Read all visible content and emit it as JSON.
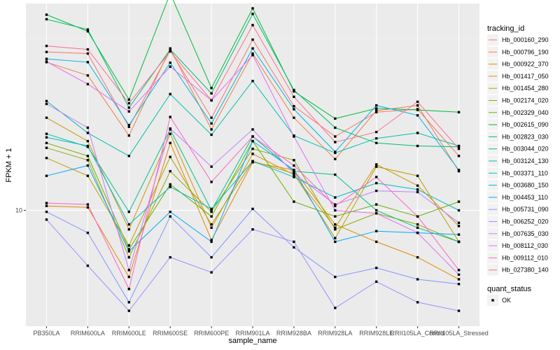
{
  "chart_data": {
    "type": "line",
    "xlabel": "sample_name",
    "ylabel": "FPKM + 1",
    "y_scale": "log10",
    "ylim": [
      4.6,
      40
    ],
    "y_ticks": [
      10
    ],
    "y_tick_labels": [
      "10"
    ],
    "grid": true,
    "legend_position": "right",
    "categories": [
      "PB350LA",
      "RRIM600LA",
      "RRIM600LE",
      "RRIM600SE",
      "RRIM600PE",
      "RRIM901LA",
      "RRIM928BA",
      "RRIM928LA",
      "RRIM928LE",
      "RRII105LA_Control",
      "RRII105LA_Stressed"
    ],
    "legend": {
      "color_title": "tracking_id",
      "shape_title": "quant_status",
      "shape_entries": [
        "OK"
      ]
    },
    "series": [
      {
        "name": "Hb_000160_290",
        "color": "#F8766D",
        "values": [
          28.9,
          28.6,
          17.5,
          29.2,
          18.6,
          31.4,
          20.1,
          16.4,
          19.3,
          19.7,
          14.4
        ]
      },
      {
        "name": "Hb_000796_190",
        "color": "#EF7F49",
        "values": [
          27.0,
          24.7,
          16.5,
          29.6,
          17.2,
          28.6,
          18.6,
          14.1,
          19.5,
          20.2,
          13.0
        ]
      },
      {
        "name": "Hb_000922_370",
        "color": "#E28A00",
        "values": [
          10.3,
          10.2,
          6.4,
          15.7,
          8.2,
          13.8,
          13.1,
          9.1,
          8.1,
          7.3,
          6.3
        ]
      },
      {
        "name": "Hb_001417_050",
        "color": "#D09400",
        "values": [
          18.6,
          15.9,
          8.8,
          16.7,
          8.9,
          14.6,
          12.7,
          8.9,
          13.6,
          11.8,
          9.0
        ]
      },
      {
        "name": "Hb_001454_280",
        "color": "#B79F00",
        "values": [
          14.2,
          12.6,
          7.9,
          14.3,
          9.1,
          13.9,
          12.8,
          8.3,
          13.4,
          12.6,
          8.1
        ]
      },
      {
        "name": "Hb_002174_020",
        "color": "#98A900",
        "values": [
          15.2,
          14.0,
          7.3,
          13.0,
          9.9,
          15.1,
          14.0,
          8.8,
          9.8,
          9.1,
          8.1
        ]
      },
      {
        "name": "Hb_002329_040",
        "color": "#6BB100",
        "values": [
          15.7,
          14.4,
          7.7,
          11.9,
          9.6,
          15.9,
          10.6,
          9.6,
          10.4,
          9.6,
          10.6
        ]
      },
      {
        "name": "Hb_002615_090",
        "color": "#00BA38",
        "values": [
          37.1,
          33.2,
          21.0,
          42.8,
          22.7,
          38.7,
          22.2,
          18.5,
          19.8,
          19.6,
          19.3
        ]
      },
      {
        "name": "Hb_002823_030",
        "color": "#00BE6C",
        "values": [
          36.0,
          33.6,
          19.9,
          29.4,
          21.9,
          37.3,
          22.4,
          17.4,
          15.7,
          15.4,
          15.3
        ]
      },
      {
        "name": "Hb_003044_020",
        "color": "#00C08B",
        "values": [
          16.7,
          15.3,
          9.9,
          17.2,
          10.0,
          16.4,
          13.0,
          12.7,
          10.0,
          8.9,
          8.1
        ]
      },
      {
        "name": "Hb_003124_130",
        "color": "#00C0AA",
        "values": [
          20.8,
          16.8,
          14.4,
          21.8,
          16.6,
          23.8,
          16.5,
          14.7,
          16.2,
          16.8,
          15.4
        ]
      },
      {
        "name": "Hb_003371_110",
        "color": "#00BCC6",
        "values": [
          16.3,
          15.4,
          9.1,
          11.7,
          10.1,
          13.9,
          12.5,
          10.9,
          12.0,
          11.5,
          10.0
        ]
      },
      {
        "name": "Hb_003680_150",
        "color": "#00B4E4",
        "values": [
          27.6,
          27.0,
          17.7,
          26.9,
          17.9,
          29.6,
          19.7,
          14.8,
          20.2,
          18.9,
          13.1
        ]
      },
      {
        "name": "Hb_004453_110",
        "color": "#00A8FF",
        "values": [
          12.6,
          13.5,
          7.6,
          9.9,
          8.1,
          15.9,
          13.1,
          8.1,
          8.7,
          8.6,
          8.5
        ]
      },
      {
        "name": "Hb_005731_090",
        "color": "#8494FF",
        "values": [
          9.9,
          8.6,
          5.4,
          9.6,
          7.3,
          10.1,
          7.8,
          6.4,
          6.8,
          6.3,
          6.1
        ]
      },
      {
        "name": "Hb_006252_020",
        "color": "#A58AFF",
        "values": [
          9.4,
          6.9,
          5.1,
          7.3,
          6.6,
          8.8,
          8.1,
          5.2,
          6.2,
          5.4,
          5.1
        ]
      },
      {
        "name": "Hb_007635_030",
        "color": "#C77CFF",
        "values": [
          20.4,
          17.4,
          6.7,
          17.3,
          13.4,
          17.2,
          12.8,
          10.4,
          11.4,
          11.3,
          9.2
        ]
      },
      {
        "name": "Hb_008112_030",
        "color": "#E36EF6",
        "values": [
          27.1,
          23.3,
          19.4,
          26.2,
          20.9,
          28.3,
          16.4,
          10.0,
          9.8,
          8.6,
          6.5
        ]
      },
      {
        "name": "Hb_009112_010",
        "color": "#FF61C3",
        "values": [
          10.5,
          10.4,
          5.9,
          18.7,
          12.1,
          16.4,
          13.5,
          10.3,
          12.5,
          9.6,
          6.7
        ]
      },
      {
        "name": "Hb_027380_140",
        "color": "#FF6C91",
        "values": [
          30.1,
          29.4,
          20.5,
          29.0,
          20.9,
          34.6,
          21.4,
          15.8,
          16.9,
          20.7,
          15.1
        ]
      }
    ]
  }
}
